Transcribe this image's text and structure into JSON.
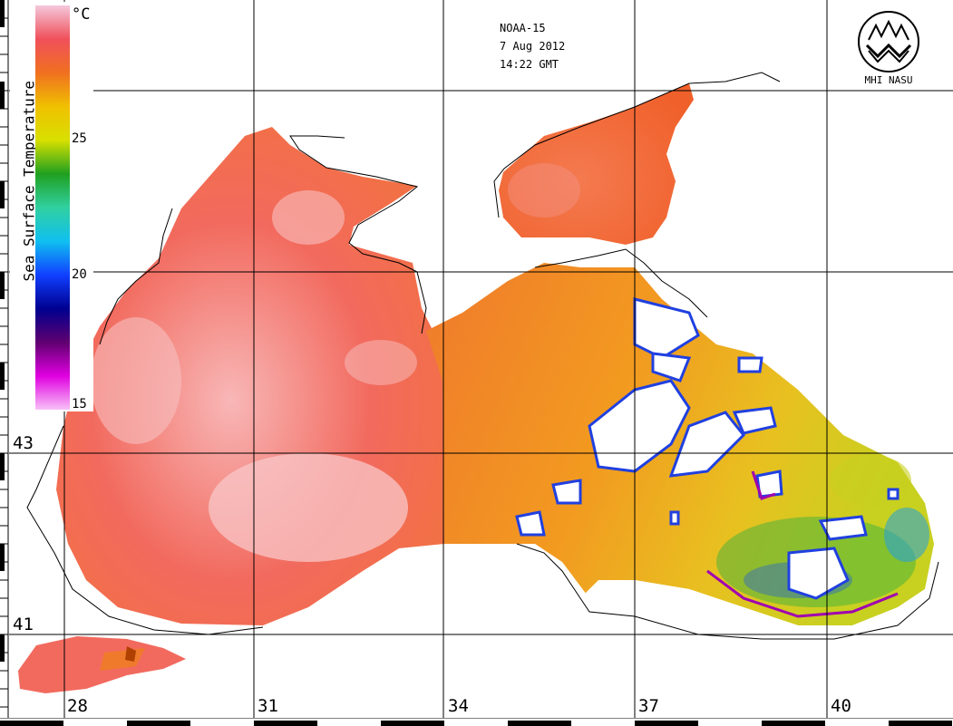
{
  "header": {
    "satellite": "NOAA-15",
    "date": "7 Aug 2012",
    "time": "14:22 GMT"
  },
  "logo": {
    "text": "MHI NASU"
  },
  "legend": {
    "title": "Sea Surface Temperature",
    "unit": "°C",
    "ticks": [
      "25",
      "20",
      "15"
    ],
    "colors": [
      "#f4c8dc",
      "#f0505a",
      "#f07020",
      "#f0c000",
      "#d8e000",
      "#20a020",
      "#30d0a0",
      "#10c0f0",
      "#1040ff",
      "#000090",
      "#600070",
      "#e000e0",
      "#f8c0f8"
    ]
  },
  "axes": {
    "latitudes": [
      "43",
      "41"
    ],
    "longitudes": [
      "28",
      "31",
      "34",
      "37",
      "40"
    ]
  },
  "colors": {
    "sea_warm": "#f26a5e",
    "sea_hot": "#f7c7c9",
    "sea_mid": "#f07a2c",
    "sea_cool": "#e4c21a",
    "land": "#ffffff"
  }
}
